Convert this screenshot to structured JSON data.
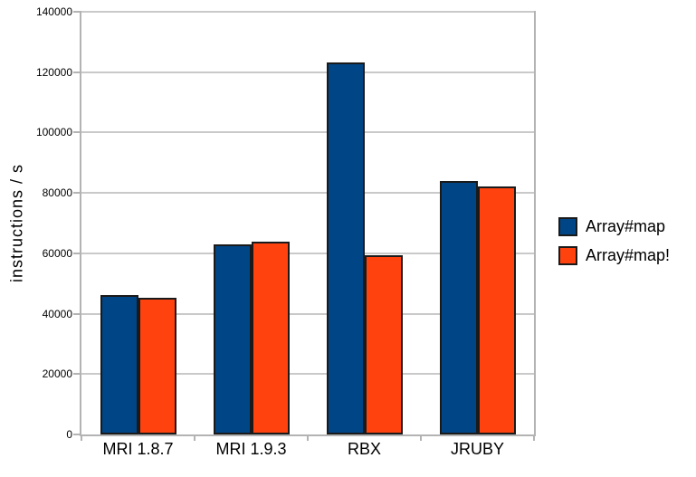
{
  "chart_data": {
    "type": "bar",
    "title": "",
    "ylabel": "instructions / s",
    "xlabel": "",
    "categories": [
      "MRI 1.8.7",
      "MRI 1.9.3",
      "RBX",
      "JRUBY"
    ],
    "series": [
      {
        "name": "Array#map",
        "color": "#004586",
        "values": [
          46300,
          63000,
          123200,
          84000
        ]
      },
      {
        "name": "Array#map!",
        "color": "#ff420e",
        "values": [
          45200,
          63900,
          59400,
          82000
        ]
      }
    ],
    "ylim": [
      0,
      140000
    ],
    "ytick_step": 20000,
    "yticks": [
      0,
      20000,
      40000,
      60000,
      80000,
      100000,
      120000,
      140000
    ],
    "ytick_labels": [
      "0",
      "20000",
      "40000",
      "60000",
      "80000",
      "100000",
      "120000",
      "140000"
    ],
    "grid": true,
    "legend_position": "right",
    "colors": {
      "background": "#ffffff",
      "gridline": "#c9c9c9",
      "axis": "#b3b3b3",
      "bar_border": "#1a1a1a",
      "text": "#000000"
    }
  }
}
